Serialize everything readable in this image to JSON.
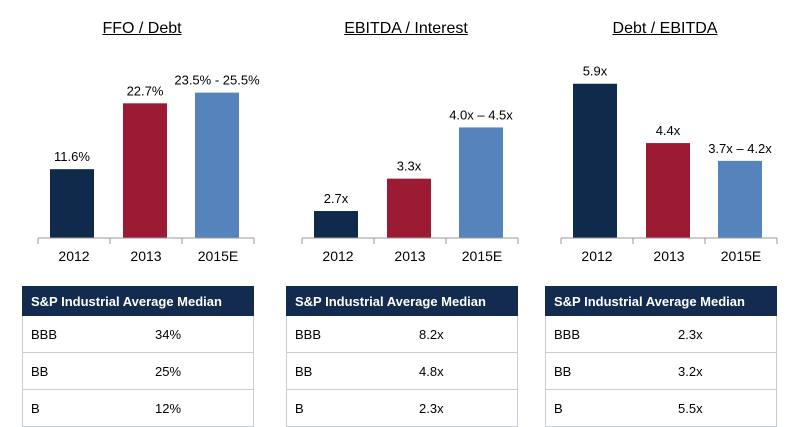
{
  "chart_data": [
    {
      "type": "bar",
      "title": "FFO / Debt",
      "categories": [
        "2012",
        "2013",
        "2015E"
      ],
      "values": [
        11.6,
        22.7,
        24.5
      ],
      "value_labels": [
        "11.6%",
        "22.7%",
        "23.5% - 25.5%"
      ],
      "colors": [
        "#102a4c",
        "#9b1b35",
        "#5583bc"
      ],
      "ylim": [
        0,
        30
      ],
      "table": {
        "header": "S&P Industrial Average Median",
        "rows": [
          [
            "BBB",
            "34%"
          ],
          [
            "BB",
            "25%"
          ],
          [
            "B",
            "12%"
          ]
        ]
      }
    },
    {
      "type": "bar",
      "title": "EBITDA / Interest",
      "categories": [
        "2012",
        "2013",
        "2015E"
      ],
      "values": [
        2.7,
        3.3,
        4.25
      ],
      "value_labels": [
        "2.7x",
        "3.3x",
        "4.0x – 4.5x"
      ],
      "colors": [
        "#102a4c",
        "#9b1b35",
        "#5583bc"
      ],
      "ylim": [
        2.2,
        5.5
      ],
      "table": {
        "header": "S&P Industrial Average Median",
        "rows": [
          [
            "BBB",
            "8.2x"
          ],
          [
            "BB",
            "4.8x"
          ],
          [
            "B",
            "2.3x"
          ]
        ]
      }
    },
    {
      "type": "bar",
      "title": "Debt / EBITDA",
      "categories": [
        "2012",
        "2013",
        "2015E"
      ],
      "values": [
        5.9,
        4.4,
        3.95
      ],
      "value_labels": [
        "5.9x",
        "4.4x",
        "3.7x – 4.2x"
      ],
      "colors": [
        "#102a4c",
        "#9b1b35",
        "#5583bc"
      ],
      "ylim": [
        2.0,
        6.5
      ],
      "table": {
        "header": "S&P Industrial Average Median",
        "rows": [
          [
            "BBB",
            "2.3x"
          ],
          [
            "BB",
            "3.2x"
          ],
          [
            "B",
            "5.5x"
          ]
        ]
      }
    }
  ]
}
